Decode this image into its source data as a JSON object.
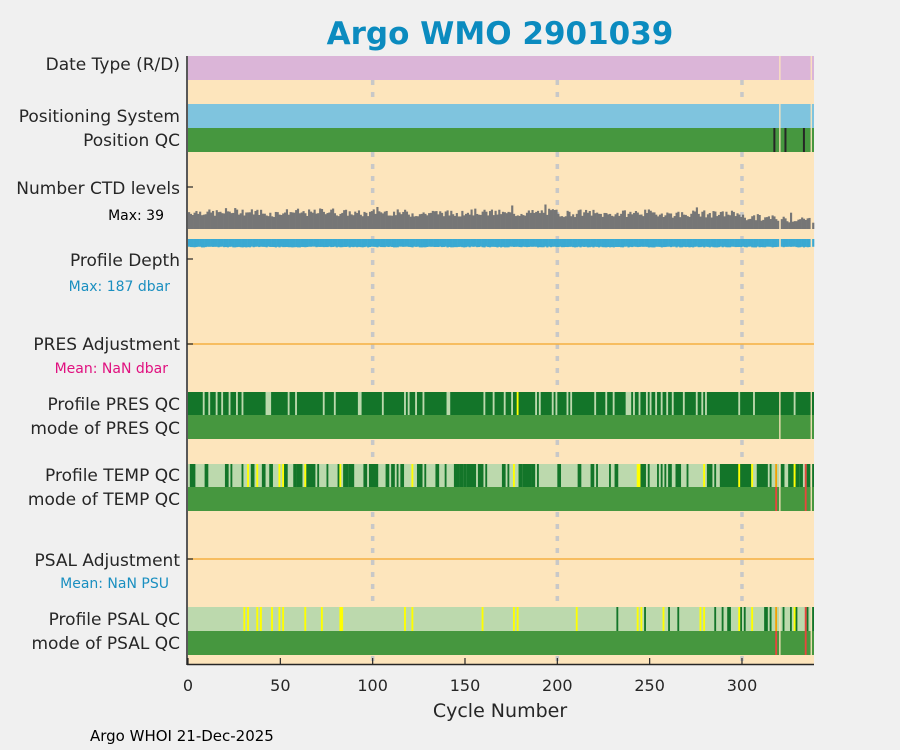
{
  "chart_data": {
    "type": "table",
    "title": "Argo WMO 2901039",
    "xlabel": "Cycle Number",
    "xlim": [
      0,
      339
    ],
    "xticks": [
      "0",
      "50",
      "100",
      "150",
      "200",
      "250",
      "300"
    ],
    "xtick_values": [
      0,
      50,
      100,
      150,
      200,
      250,
      300
    ],
    "grid_x": [
      100,
      200,
      300
    ],
    "last_cycle": 338,
    "missing_cycles": [
      320,
      337
    ],
    "footer": "Argo WHOI 21-Dec-2025",
    "colors": {
      "title": "#0b8bbf",
      "background": "#fde5bc",
      "figure": "#f0f0f0",
      "date_type": "#dbb5d8",
      "positioning": "#7fc4de",
      "qc_good": "#46973f",
      "qc_dark": "#137529",
      "qc_light": "#bcd9ad",
      "qc_yellow": "#ffff00",
      "qc_orange": "#f5a000",
      "qc_red": "#e8453c",
      "qc_black": "#262626",
      "ctd": "#767676",
      "depth": "#3aa9d2",
      "adjust_line": "#f5b041",
      "pres_mean": "#e0107f",
      "psal_mean": "#1a8fc0",
      "depth_max": "#1a8fc0"
    },
    "rows": {
      "date_type": {
        "label": "Date Type (R/D)",
        "value": "R"
      },
      "positioning_system": {
        "label": "Positioning System"
      },
      "position_qc": {
        "label": "Position QC",
        "flag_bad_cycles": [
          317,
          323,
          333
        ]
      },
      "ctd_levels": {
        "label": "Number CTD levels",
        "max_label": "Max: 39",
        "max": 39,
        "mean_per_10_cycles": [
          22,
          21,
          23,
          22,
          20,
          22,
          21,
          23,
          21,
          20,
          22,
          21,
          20,
          21,
          20,
          22,
          21,
          20,
          21,
          22,
          20,
          21,
          19,
          20,
          21,
          20,
          19,
          20,
          19,
          20,
          15,
          14,
          13,
          12
        ]
      },
      "profile_depth": {
        "label": "Profile Depth",
        "max_label": "Max:  187 dbar",
        "max_dbar": 187,
        "typical_dbar": 175
      },
      "pres_adjustment": {
        "label": "PRES Adjustment",
        "mean_label": "Mean:  NaN dbar"
      },
      "profile_pres_qc": {
        "label": "Profile PRES QC",
        "base": "dark",
        "light": [
          [
            8,
            8
          ],
          [
            11,
            11
          ],
          [
            15,
            15
          ],
          [
            18,
            18
          ],
          [
            22,
            22
          ],
          [
            26,
            26
          ],
          [
            29,
            29
          ],
          [
            42,
            44
          ],
          [
            54,
            54
          ],
          [
            58,
            58
          ],
          [
            73,
            73
          ],
          [
            79,
            79
          ],
          [
            92,
            93
          ],
          [
            105,
            105
          ],
          [
            117,
            117
          ],
          [
            119,
            119
          ],
          [
            123,
            123
          ],
          [
            127,
            127
          ],
          [
            140,
            141
          ],
          [
            160,
            160
          ],
          [
            165,
            165
          ],
          [
            171,
            171
          ],
          [
            175,
            175
          ],
          [
            188,
            188
          ],
          [
            190,
            190
          ],
          [
            197,
            197
          ],
          [
            199,
            199
          ],
          [
            205,
            205
          ],
          [
            207,
            207
          ],
          [
            220,
            220
          ],
          [
            226,
            226
          ],
          [
            230,
            230
          ],
          [
            237,
            239
          ],
          [
            241,
            241
          ],
          [
            244,
            244
          ],
          [
            248,
            248
          ],
          [
            250,
            250
          ],
          [
            253,
            253
          ],
          [
            256,
            256
          ],
          [
            259,
            259
          ],
          [
            262,
            262
          ],
          [
            268,
            268
          ],
          [
            275,
            275
          ],
          [
            278,
            278
          ],
          [
            280,
            280
          ],
          [
            298,
            298
          ],
          [
            306,
            306
          ],
          [
            328,
            328
          ]
        ],
        "yellow": [
          [
            178,
            178
          ]
        ]
      },
      "mode_pres_qc": {
        "label": "mode of PRES QC",
        "base": "good"
      },
      "profile_temp_qc": {
        "label": "Profile TEMP QC",
        "base": "light",
        "dark": [
          [
            1,
            3
          ],
          [
            9,
            10
          ],
          [
            20,
            21
          ],
          [
            23,
            23
          ],
          [
            29,
            29
          ],
          [
            34,
            35
          ],
          [
            40,
            41
          ],
          [
            44,
            45
          ],
          [
            52,
            53
          ],
          [
            57,
            58
          ],
          [
            59,
            61
          ],
          [
            64,
            68
          ],
          [
            70,
            70
          ],
          [
            75,
            75
          ],
          [
            81,
            81
          ],
          [
            84,
            86
          ],
          [
            87,
            89
          ],
          [
            95,
            96
          ],
          [
            98,
            102
          ],
          [
            107,
            108
          ],
          [
            110,
            111
          ],
          [
            113,
            113
          ],
          [
            115,
            116
          ],
          [
            124,
            126
          ],
          [
            128,
            128
          ],
          [
            134,
            135
          ],
          [
            139,
            139
          ],
          [
            144,
            146
          ],
          [
            147,
            148
          ],
          [
            149,
            150
          ],
          [
            151,
            155
          ],
          [
            157,
            159
          ],
          [
            161,
            161
          ],
          [
            170,
            171
          ],
          [
            173,
            173
          ],
          [
            179,
            180
          ],
          [
            181,
            185
          ],
          [
            186,
            187
          ],
          [
            189,
            189
          ],
          [
            200,
            201
          ],
          [
            211,
            212
          ],
          [
            218,
            219
          ],
          [
            221,
            221
          ],
          [
            228,
            228
          ],
          [
            231,
            232
          ],
          [
            245,
            247
          ],
          [
            249,
            249
          ],
          [
            254,
            254
          ],
          [
            256,
            256
          ],
          [
            258,
            258
          ],
          [
            260,
            261
          ],
          [
            264,
            266
          ],
          [
            270,
            270
          ],
          [
            281,
            283
          ],
          [
            285,
            285
          ],
          [
            288,
            297
          ],
          [
            298,
            304
          ],
          [
            308,
            313
          ],
          [
            315,
            315
          ],
          [
            321,
            322
          ],
          [
            325,
            327
          ],
          [
            329,
            330
          ],
          [
            331,
            332
          ],
          [
            335,
            336
          ],
          [
            338,
            338
          ]
        ],
        "yellow": [
          [
            32,
            32
          ],
          [
            37,
            37
          ],
          [
            49,
            49
          ],
          [
            51,
            51
          ],
          [
            63,
            63
          ],
          [
            82,
            82
          ],
          [
            121,
            121
          ],
          [
            176,
            176
          ],
          [
            243,
            244
          ],
          [
            279,
            279
          ],
          [
            298,
            298
          ],
          [
            305,
            305
          ],
          [
            328,
            328
          ]
        ],
        "orange": [
          [
            318,
            318
          ]
        ],
        "red": [
          [
            334,
            334
          ]
        ]
      },
      "mode_temp_qc": {
        "label": "mode of TEMP QC",
        "base": "good",
        "red": [
          [
            318,
            318
          ],
          [
            334,
            334
          ]
        ]
      },
      "psal_adjustment": {
        "label": "PSAL Adjustment",
        "mean_label": "Mean:  NaN PSU"
      },
      "profile_psal_qc": {
        "label": "Profile PSAL QC",
        "base": "light",
        "yellow": [
          [
            30,
            30
          ],
          [
            32,
            32
          ],
          [
            37,
            37
          ],
          [
            39,
            39
          ],
          [
            45,
            45
          ],
          [
            49,
            49
          ],
          [
            51,
            51
          ],
          [
            63,
            63
          ],
          [
            72,
            72
          ],
          [
            82,
            83
          ],
          [
            117,
            117
          ],
          [
            121,
            121
          ],
          [
            159,
            159
          ],
          [
            176,
            176
          ],
          [
            178,
            178
          ],
          [
            210,
            210
          ],
          [
            243,
            243
          ],
          [
            245,
            245
          ],
          [
            257,
            257
          ],
          [
            277,
            277
          ],
          [
            279,
            279
          ],
          [
            298,
            298
          ],
          [
            305,
            305
          ],
          [
            328,
            328
          ]
        ],
        "dark": [
          [
            232,
            232
          ],
          [
            247,
            247
          ],
          [
            260,
            260
          ],
          [
            265,
            265
          ],
          [
            285,
            285
          ],
          [
            289,
            289
          ],
          [
            292,
            293
          ],
          [
            299,
            299
          ],
          [
            301,
            301
          ],
          [
            312,
            313
          ],
          [
            315,
            315
          ],
          [
            322,
            322
          ],
          [
            326,
            326
          ],
          [
            329,
            329
          ],
          [
            335,
            335
          ],
          [
            338,
            338
          ]
        ],
        "orange": [
          [
            318,
            318
          ]
        ],
        "red": [
          [
            334,
            334
          ]
        ]
      },
      "mode_psal_qc": {
        "label": "mode of PSAL QC",
        "base": "good",
        "red": [
          [
            318,
            318
          ],
          [
            334,
            334
          ]
        ]
      }
    }
  }
}
